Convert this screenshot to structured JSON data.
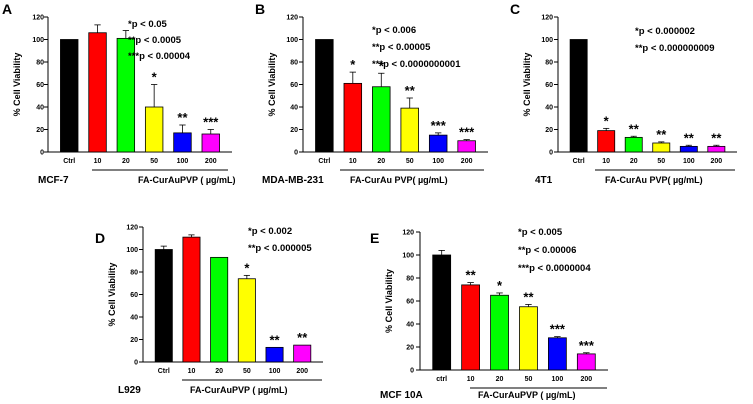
{
  "chart_data": [
    {
      "type": "bar",
      "panel_label": "A",
      "cell_line": "MCF-7",
      "treatment_label": "FA-CurAuPVP ( µg/mL)",
      "ylabel": "% Cell Viability",
      "ylim": [
        0,
        120
      ],
      "yticks": [
        0,
        20,
        40,
        60,
        80,
        100,
        120
      ],
      "categories": [
        "Ctrl",
        "10",
        "20",
        "50",
        "100",
        "200"
      ],
      "values": [
        100,
        106,
        101,
        40,
        17,
        16
      ],
      "errors": [
        0,
        7,
        7,
        20,
        7,
        4
      ],
      "colors": [
        "#000000",
        "#ff0000",
        "#00ff00",
        "#ffff00",
        "#0000ff",
        "#ff00ff"
      ],
      "significance": [
        "",
        "",
        "",
        "*",
        "**",
        "***"
      ],
      "legend": [
        "*p < 0.05",
        "**p < 0.0005",
        "***p < 0.00004"
      ]
    },
    {
      "type": "bar",
      "panel_label": "B",
      "cell_line": "MDA-MB-231",
      "treatment_label": "FA-CurAu PVP( µg/mL)",
      "ylabel": "% Cell Viability",
      "ylim": [
        0,
        120
      ],
      "yticks": [
        0,
        20,
        40,
        60,
        80,
        100,
        120
      ],
      "categories": [
        "Ctrl",
        "10",
        "20",
        "50",
        "100",
        "200"
      ],
      "values": [
        100,
        61,
        58,
        39,
        15,
        10
      ],
      "errors": [
        0,
        10,
        12,
        9,
        2,
        1
      ],
      "colors": [
        "#000000",
        "#ff0000",
        "#00ff00",
        "#ffff00",
        "#0000ff",
        "#ff00ff"
      ],
      "significance": [
        "",
        "*",
        "*",
        "**",
        "***",
        "***"
      ],
      "legend": [
        "*p < 0.006",
        "**p < 0.00005",
        "***p < 0.0000000001"
      ]
    },
    {
      "type": "bar",
      "panel_label": "C",
      "cell_line": "4T1",
      "treatment_label": "FA-CurAu PVP( µg/mL)",
      "ylabel": "% Cell Viability",
      "ylim": [
        0,
        120
      ],
      "yticks": [
        0,
        20,
        40,
        60,
        80,
        100,
        120
      ],
      "categories": [
        "Ctrl",
        "10",
        "20",
        "50",
        "100",
        "200"
      ],
      "values": [
        100,
        19,
        13,
        8,
        5,
        5
      ],
      "errors": [
        0,
        2,
        1,
        1,
        1,
        1
      ],
      "colors": [
        "#000000",
        "#ff0000",
        "#00ff00",
        "#ffff00",
        "#0000ff",
        "#ff00ff"
      ],
      "significance": [
        "",
        "*",
        "**",
        "**",
        "**",
        "**"
      ],
      "legend": [
        "*p < 0.000002",
        "**p < 0.000000009"
      ]
    },
    {
      "type": "bar",
      "panel_label": "D",
      "cell_line": "L929",
      "treatment_label": "FA-CurAuPVP ( µg/mL)",
      "ylabel": "% Cell Viability",
      "ylim": [
        0,
        120
      ],
      "yticks": [
        0,
        20,
        40,
        60,
        80,
        100,
        120
      ],
      "categories": [
        "Ctrl",
        "10",
        "20",
        "50",
        "100",
        "200"
      ],
      "values": [
        100,
        111,
        93,
        74,
        13,
        15
      ],
      "errors": [
        3,
        2,
        0,
        3,
        0,
        0
      ],
      "colors": [
        "#000000",
        "#ff0000",
        "#00ff00",
        "#ffff00",
        "#0000ff",
        "#ff00ff"
      ],
      "significance": [
        "",
        "",
        "",
        "*",
        "**",
        "**"
      ],
      "legend": [
        "*p < 0.002",
        "**p < 0.000005"
      ]
    },
    {
      "type": "bar",
      "panel_label": "E",
      "cell_line": "MCF 10A",
      "treatment_label": "FA-CurAuPVP ( µg/mL)",
      "ylabel": "% Cell Viability",
      "ylim": [
        0,
        120
      ],
      "yticks": [
        0,
        20,
        40,
        60,
        80,
        100,
        120
      ],
      "categories": [
        "ctrl",
        "10",
        "20",
        "50",
        "100",
        "200"
      ],
      "values": [
        100,
        74,
        65,
        55,
        28,
        14
      ],
      "errors": [
        4,
        2,
        2,
        2,
        1,
        1
      ],
      "colors": [
        "#000000",
        "#ff0000",
        "#00ff00",
        "#ffff00",
        "#0000ff",
        "#ff00ff"
      ],
      "significance": [
        "",
        "**",
        "*",
        "**",
        "***",
        "***"
      ],
      "legend": [
        "*p < 0.005",
        "**p < 0.00006",
        "***p < 0.0000004"
      ]
    }
  ]
}
